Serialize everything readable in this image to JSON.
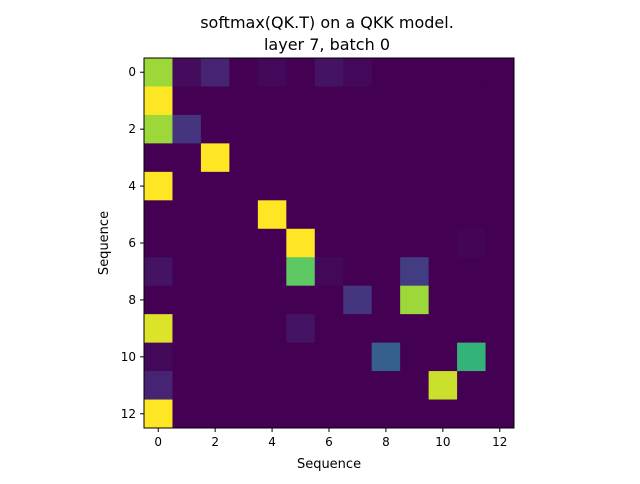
{
  "chart_data": {
    "type": "heatmap",
    "title_lines": [
      "softmax(QK.T) on a QKK model.",
      "layer 7, batch 0"
    ],
    "xlabel": "Sequence",
    "ylabel": "Sequence",
    "x_ticks": [
      0,
      2,
      4,
      6,
      8,
      10,
      12
    ],
    "y_ticks": [
      0,
      2,
      4,
      6,
      8,
      10,
      12
    ],
    "x_range": [
      -0.5,
      12.5
    ],
    "y_range": [
      -0.5,
      12.5
    ],
    "y_inverted": true,
    "colormap": "viridis",
    "value_range": [
      0,
      1
    ],
    "rows": 13,
    "cols": 13,
    "matrix": [
      [
        0.85,
        0.03,
        0.1,
        0.0,
        0.02,
        0.0,
        0.05,
        0.02,
        0.0,
        0.0,
        0.0,
        0.0,
        0.0
      ],
      [
        1.0,
        0.0,
        0.0,
        0.0,
        0.0,
        0.0,
        0.0,
        0.0,
        0.0,
        0.0,
        0.0,
        0.0,
        0.0
      ],
      [
        0.85,
        0.15,
        0.0,
        0.0,
        0.0,
        0.0,
        0.0,
        0.0,
        0.0,
        0.0,
        0.0,
        0.0,
        0.0
      ],
      [
        0.0,
        0.0,
        1.0,
        0.0,
        0.0,
        0.0,
        0.0,
        0.0,
        0.0,
        0.0,
        0.0,
        0.0,
        0.0
      ],
      [
        1.0,
        0.0,
        0.0,
        0.0,
        0.0,
        0.0,
        0.0,
        0.0,
        0.0,
        0.0,
        0.0,
        0.0,
        0.0
      ],
      [
        0.0,
        0.0,
        0.0,
        0.0,
        1.0,
        0.0,
        0.0,
        0.0,
        0.0,
        0.0,
        0.0,
        0.0,
        0.0
      ],
      [
        0.0,
        0.0,
        0.0,
        0.0,
        0.0,
        1.0,
        0.0,
        0.0,
        0.0,
        0.0,
        0.0,
        0.01,
        0.0
      ],
      [
        0.05,
        0.0,
        0.0,
        0.0,
        0.0,
        0.75,
        0.02,
        0.0,
        0.0,
        0.18,
        0.0,
        0.0,
        0.0
      ],
      [
        0.0,
        0.0,
        0.0,
        0.0,
        0.0,
        0.0,
        0.0,
        0.15,
        0.0,
        0.85,
        0.0,
        0.0,
        0.0
      ],
      [
        0.95,
        0.0,
        0.0,
        0.0,
        0.0,
        0.05,
        0.0,
        0.0,
        0.0,
        0.0,
        0.0,
        0.0,
        0.0
      ],
      [
        0.02,
        0.0,
        0.0,
        0.0,
        0.0,
        0.0,
        0.0,
        0.0,
        0.3,
        0.0,
        0.0,
        0.65,
        0.0
      ],
      [
        0.1,
        0.0,
        0.0,
        0.0,
        0.0,
        0.0,
        0.0,
        0.0,
        0.0,
        0.0,
        0.92,
        0.0,
        0.0
      ],
      [
        1.0,
        0.0,
        0.0,
        0.0,
        0.0,
        0.0,
        0.0,
        0.0,
        0.0,
        0.0,
        0.0,
        0.0,
        0.0
      ]
    ]
  }
}
